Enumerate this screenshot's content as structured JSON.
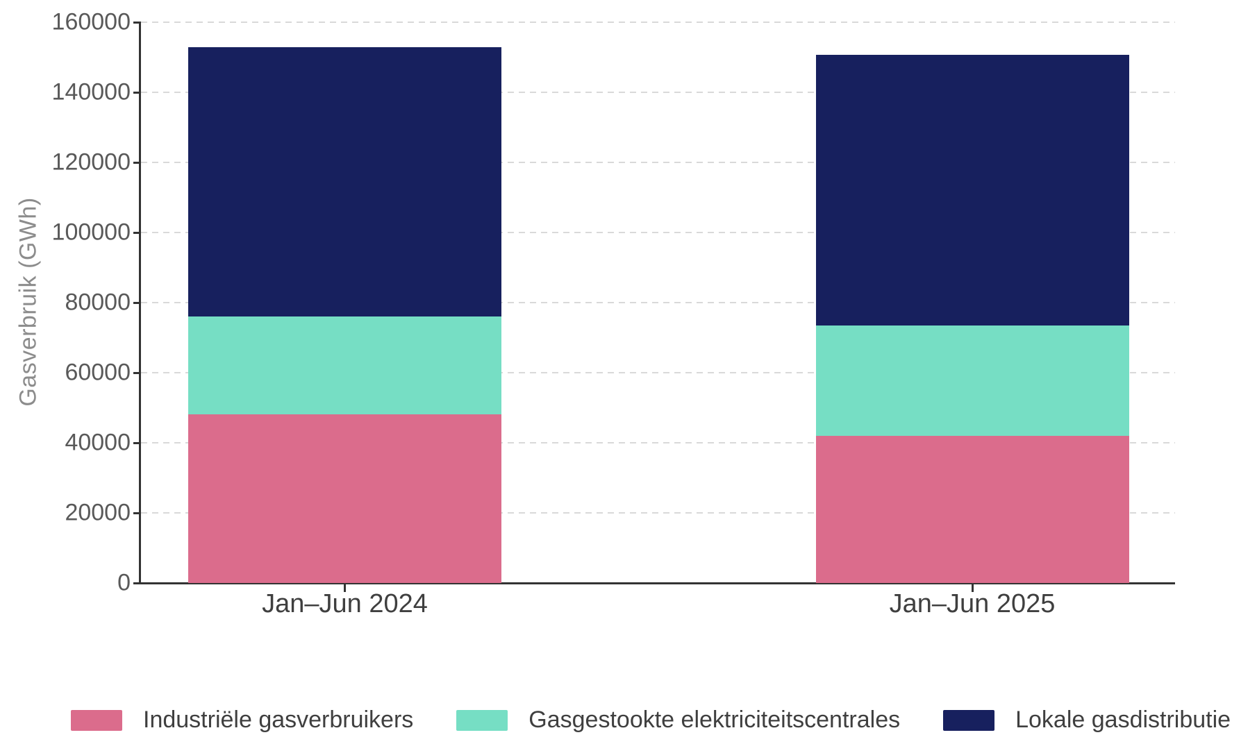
{
  "chart_data": {
    "type": "bar",
    "stacked": true,
    "title": "",
    "ylabel": "Gasverbruik (GWh)",
    "xlabel": "",
    "categories": [
      "Jan–Jun 2024",
      "Jan–Jun 2025"
    ],
    "series": [
      {
        "name": "Industriële gasverbruikers",
        "color": "#DB6C8C",
        "values": [
          48100,
          41900
        ]
      },
      {
        "name": "Gasgestookte elektriciteitscentrales",
        "color": "#76DEC4",
        "values": [
          27900,
          31650
        ]
      },
      {
        "name": "Lokale gasdistributie",
        "color": "#17205E",
        "values": [
          76900,
          77050
        ]
      }
    ],
    "totals": [
      152900,
      150600
    ],
    "ylim": [
      0,
      160000
    ],
    "yticks": [
      0,
      20000,
      40000,
      60000,
      80000,
      100000,
      120000,
      140000,
      160000
    ],
    "grid": "horizontal-dashed",
    "legend_position": "bottom"
  },
  "style_colors": {
    "background": "#FFFFFF",
    "axis": "#333333",
    "gridline": "#D9D9D9",
    "y_tick_text": "#595959",
    "x_tick_text": "#3F3F3F",
    "y_title_text": "#8C8C8C",
    "legend_text": "#3F3F3F"
  }
}
